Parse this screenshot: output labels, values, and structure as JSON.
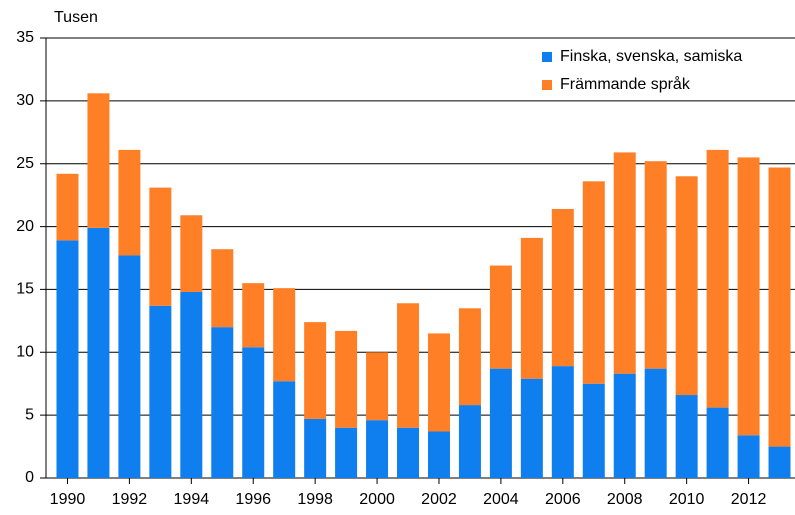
{
  "chart_data": {
    "type": "stacked_bar",
    "ylabel": "Tusen",
    "categories": [
      "1990",
      null,
      "1992",
      null,
      "1994",
      null,
      "1996",
      null,
      "1998",
      null,
      "2000",
      null,
      "2002",
      null,
      "2004",
      null,
      "2006",
      null,
      "2008",
      null,
      "2010",
      null,
      "2012",
      null
    ],
    "series": [
      {
        "name": "Finska, svenska, samiska",
        "color": "#0f7ff0",
        "values": [
          18.9,
          19.9,
          17.7,
          13.7,
          14.8,
          12.0,
          10.4,
          7.7,
          4.7,
          4.0,
          4.6,
          4.0,
          3.7,
          5.8,
          8.7,
          7.9,
          8.9,
          7.5,
          8.3,
          8.7,
          6.6,
          5.6,
          3.4,
          2.5
        ]
      },
      {
        "name": "Främmande språk",
        "color": "#ff7f27",
        "values": [
          5.3,
          10.7,
          8.4,
          9.4,
          6.1,
          6.2,
          5.1,
          7.4,
          7.7,
          7.7,
          5.4,
          9.9,
          7.8,
          7.7,
          8.2,
          11.2,
          12.5,
          16.1,
          17.6,
          16.5,
          17.4,
          20.5,
          22.1,
          22.2
        ]
      }
    ],
    "ylim": [
      0,
      35
    ],
    "yticks": [
      0,
      5,
      10,
      15,
      20,
      25,
      30,
      35
    ],
    "grid": true,
    "legend": "top-right"
  }
}
